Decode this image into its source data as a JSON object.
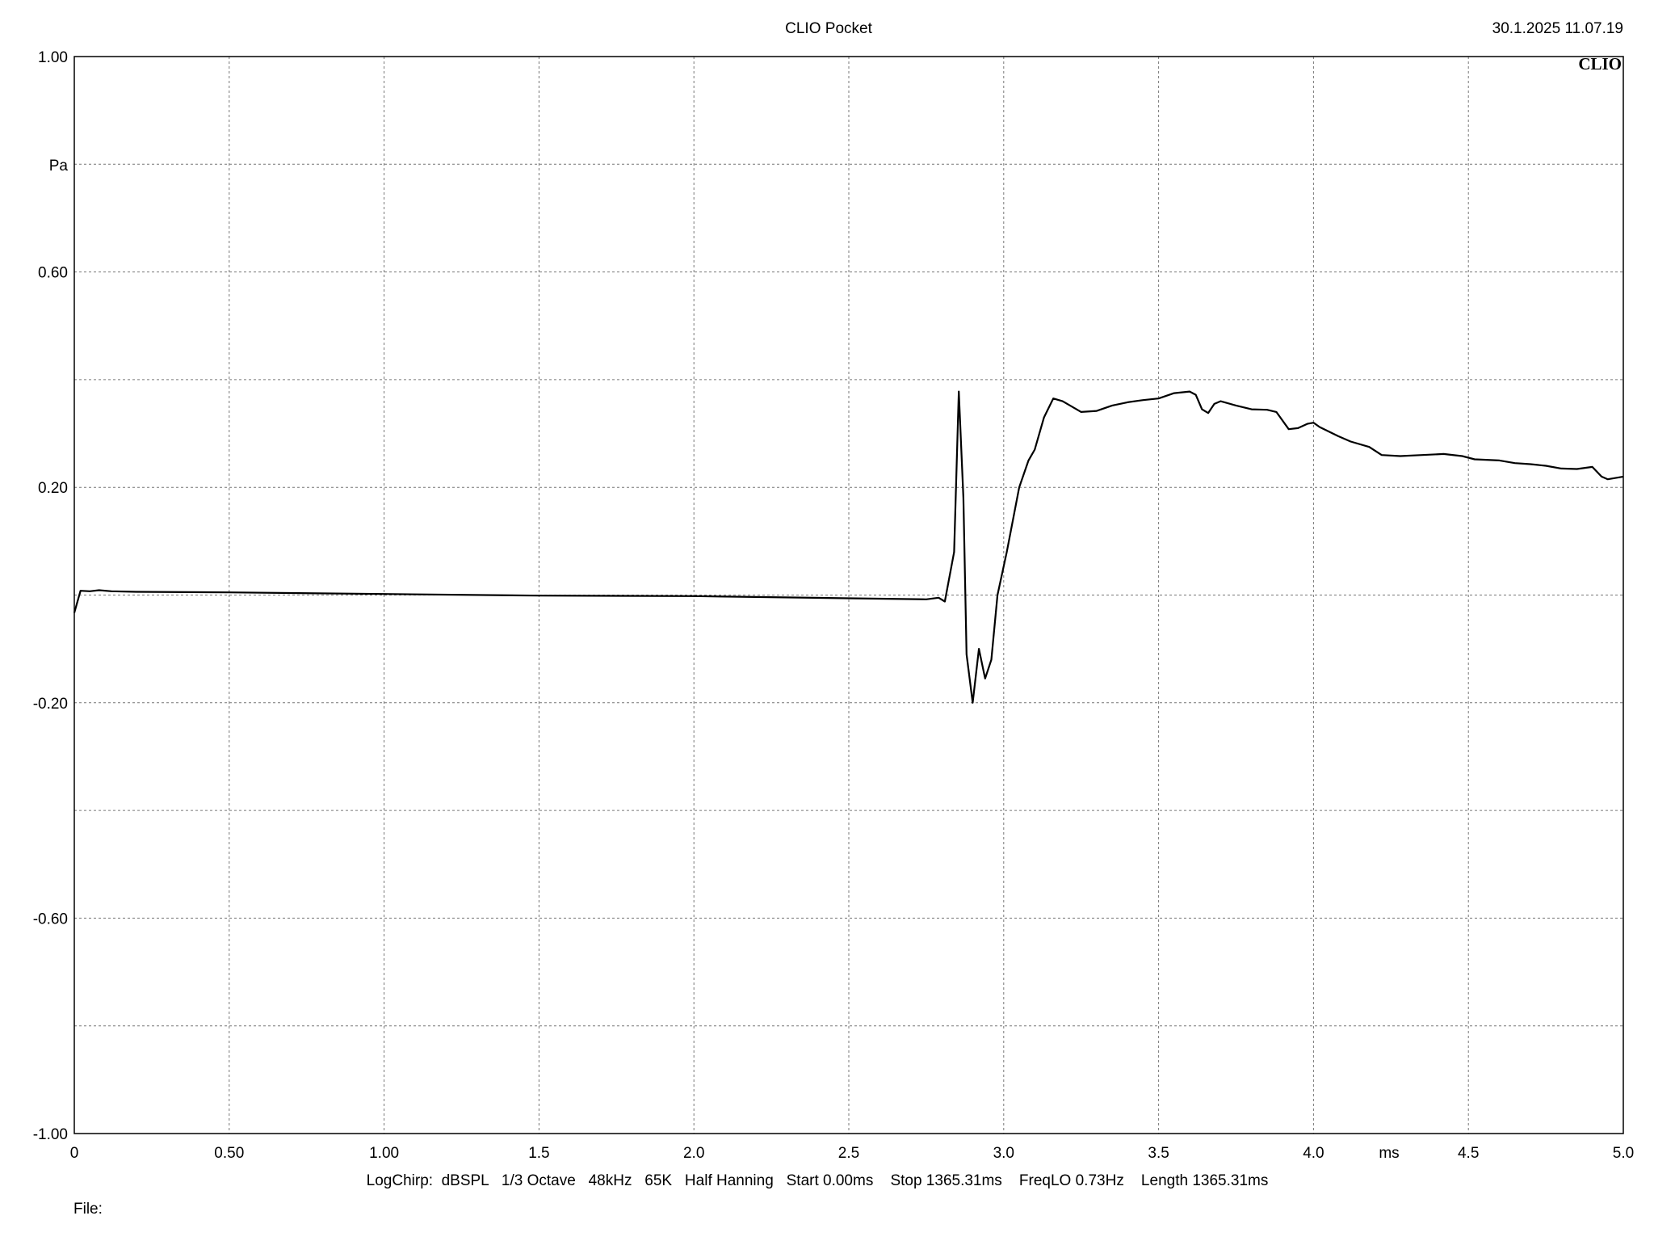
{
  "header": {
    "title": "CLIO Pocket",
    "timestamp": "30.1.2025 11.07.19",
    "brand": "CLIO"
  },
  "footer": {
    "settings": "LogChirp:  dBSPL   1/3 Octave   48kHz   65K   Half Hanning   Start 0.00ms    Stop 1365.31ms    FreqLO 0.73Hz    Length 1365.31ms",
    "file_label": "File:"
  },
  "chart_data": {
    "type": "line",
    "title": "CLIO Pocket",
    "xlabel": "ms",
    "ylabel": "Pa",
    "xlim": [
      0,
      5
    ],
    "ylim": [
      -1,
      1
    ],
    "grid": true,
    "x_ticks": [
      {
        "value": 0,
        "label": "0"
      },
      {
        "value": 0.5,
        "label": "0.50"
      },
      {
        "value": 1.0,
        "label": "1.00"
      },
      {
        "value": 1.5,
        "label": "1.5"
      },
      {
        "value": 2.0,
        "label": "2.0"
      },
      {
        "value": 2.5,
        "label": "2.5"
      },
      {
        "value": 3.0,
        "label": "3.0"
      },
      {
        "value": 3.5,
        "label": "3.5"
      },
      {
        "value": 4.0,
        "label": "4.0"
      },
      {
        "value": 4.5,
        "label": "4.5"
      },
      {
        "value": 5.0,
        "label": "5.0"
      }
    ],
    "y_ticks": [
      {
        "value": 1.0,
        "label": "1.00"
      },
      {
        "value": 0.6,
        "label": "0.60"
      },
      {
        "value": 0.2,
        "label": "0.20"
      },
      {
        "value": -0.2,
        "label": "-0.20"
      },
      {
        "value": -0.6,
        "label": "-0.60"
      },
      {
        "value": -1.0,
        "label": "-1.00"
      }
    ],
    "y_grid": [
      0.8,
      0.6,
      0.4,
      0.2,
      0.0,
      -0.2,
      -0.4,
      -0.6,
      -0.8
    ],
    "series": [
      {
        "values": [
          [
            0.0,
            -0.033
          ],
          [
            0.02,
            0.008
          ],
          [
            0.05,
            0.007
          ],
          [
            0.08,
            0.009
          ],
          [
            0.12,
            0.007
          ],
          [
            0.2,
            0.006
          ],
          [
            0.5,
            0.005
          ],
          [
            1.0,
            0.002
          ],
          [
            1.5,
            -0.001
          ],
          [
            2.0,
            -0.002
          ],
          [
            2.5,
            -0.006
          ],
          [
            2.75,
            -0.008
          ],
          [
            2.79,
            -0.005
          ],
          [
            2.81,
            -0.012
          ],
          [
            2.84,
            0.08
          ],
          [
            2.855,
            0.378
          ],
          [
            2.87,
            0.18
          ],
          [
            2.88,
            -0.11
          ],
          [
            2.9,
            -0.2
          ],
          [
            2.92,
            -0.1
          ],
          [
            2.94,
            -0.155
          ],
          [
            2.96,
            -0.12
          ],
          [
            2.98,
            0.0
          ],
          [
            3.01,
            0.08
          ],
          [
            3.05,
            0.2
          ],
          [
            3.08,
            0.25
          ],
          [
            3.1,
            0.27
          ],
          [
            3.13,
            0.33
          ],
          [
            3.16,
            0.365
          ],
          [
            3.19,
            0.36
          ],
          [
            3.25,
            0.34
          ],
          [
            3.3,
            0.342
          ],
          [
            3.35,
            0.352
          ],
          [
            3.4,
            0.358
          ],
          [
            3.45,
            0.362
          ],
          [
            3.5,
            0.365
          ],
          [
            3.55,
            0.375
          ],
          [
            3.6,
            0.378
          ],
          [
            3.62,
            0.372
          ],
          [
            3.64,
            0.345
          ],
          [
            3.66,
            0.338
          ],
          [
            3.68,
            0.355
          ],
          [
            3.7,
            0.36
          ],
          [
            3.75,
            0.352
          ],
          [
            3.8,
            0.345
          ],
          [
            3.85,
            0.344
          ],
          [
            3.88,
            0.34
          ],
          [
            3.92,
            0.308
          ],
          [
            3.95,
            0.31
          ],
          [
            3.98,
            0.318
          ],
          [
            4.0,
            0.32
          ],
          [
            4.02,
            0.312
          ],
          [
            4.08,
            0.295
          ],
          [
            4.12,
            0.285
          ],
          [
            4.18,
            0.275
          ],
          [
            4.22,
            0.26
          ],
          [
            4.28,
            0.258
          ],
          [
            4.35,
            0.26
          ],
          [
            4.42,
            0.262
          ],
          [
            4.48,
            0.258
          ],
          [
            4.52,
            0.252
          ],
          [
            4.6,
            0.25
          ],
          [
            4.65,
            0.245
          ],
          [
            4.7,
            0.243
          ],
          [
            4.75,
            0.24
          ],
          [
            4.8,
            0.235
          ],
          [
            4.85,
            0.234
          ],
          [
            4.9,
            0.238
          ],
          [
            4.93,
            0.22
          ],
          [
            4.95,
            0.215
          ],
          [
            5.0,
            0.22
          ]
        ]
      }
    ]
  }
}
